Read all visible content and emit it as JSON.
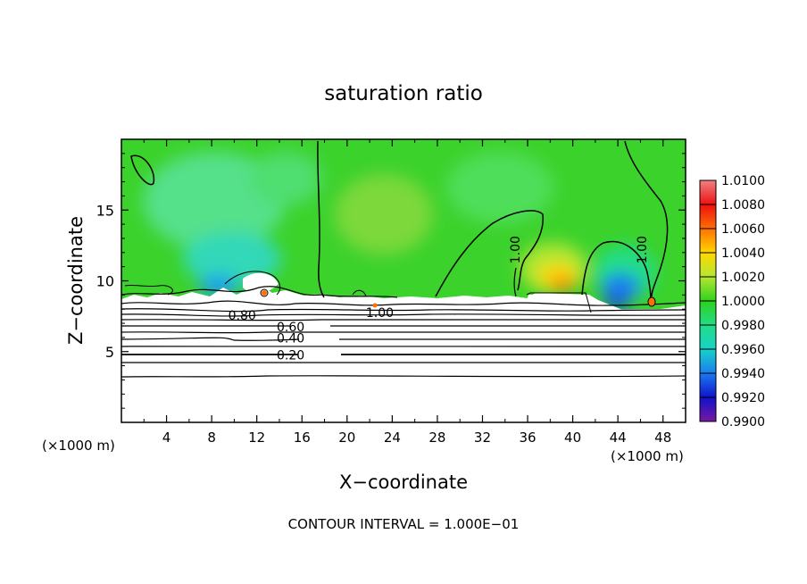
{
  "chart_data": {
    "type": "heatmap",
    "title": "saturation ratio",
    "xlabel": "X−coordinate",
    "ylabel": "Z−coordinate",
    "x_unit_left": "(×1000 m)",
    "x_unit_right": "(×1000 m)",
    "footer": "CONTOUR INTERVAL = 1.000E−01",
    "xlim": [
      0,
      50
    ],
    "ylim": [
      0,
      20
    ],
    "x_ticks": [
      "4",
      "8",
      "12",
      "16",
      "20",
      "24",
      "28",
      "32",
      "36",
      "40",
      "44",
      "48"
    ],
    "y_ticks": [
      "5",
      "10",
      "15"
    ],
    "colorbar_ticks": [
      "1.0100",
      "1.0080",
      "1.0060",
      "1.0040",
      "1.0020",
      "1.0000",
      "0.9980",
      "0.9960",
      "0.9940",
      "0.9920",
      "0.9900"
    ],
    "colorbar_colors": [
      "#f08080",
      "#ee1010",
      "#ff7000",
      "#ffd800",
      "#b5e632",
      "#2ed11c",
      "#20dd88",
      "#18d2c8",
      "#1a7cf0",
      "#1010cc",
      "#7a1aa0"
    ],
    "field_background": "#3cd22c",
    "contour_labels": [
      {
        "text": "0.80",
        "x": 10.7,
        "z": 7.5
      },
      {
        "text": "0.60",
        "x": 15.0,
        "z": 6.7
      },
      {
        "text": "0.40",
        "x": 15.0,
        "z": 5.9
      },
      {
        "text": "0.20",
        "x": 15.0,
        "z": 4.7
      },
      {
        "text": "1.00",
        "x": 22.9,
        "z": 7.7
      },
      {
        "text": "1.00",
        "x": 35.3,
        "z": 12.2
      },
      {
        "text": "1.00",
        "x": 46.5,
        "z": 12.2
      }
    ]
  }
}
